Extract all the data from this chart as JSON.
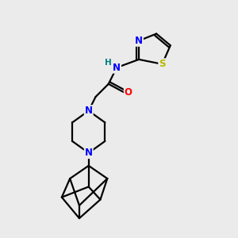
{
  "background_color": "#ebebeb",
  "bond_color": "#000000",
  "N_color": "#0000ff",
  "O_color": "#ff0000",
  "S_color": "#b8b800",
  "H_color": "#008080",
  "line_width": 1.6,
  "figsize": [
    3.0,
    3.0
  ],
  "dpi": 100,
  "xlim": [
    0,
    10
  ],
  "ylim": [
    0,
    10
  ]
}
